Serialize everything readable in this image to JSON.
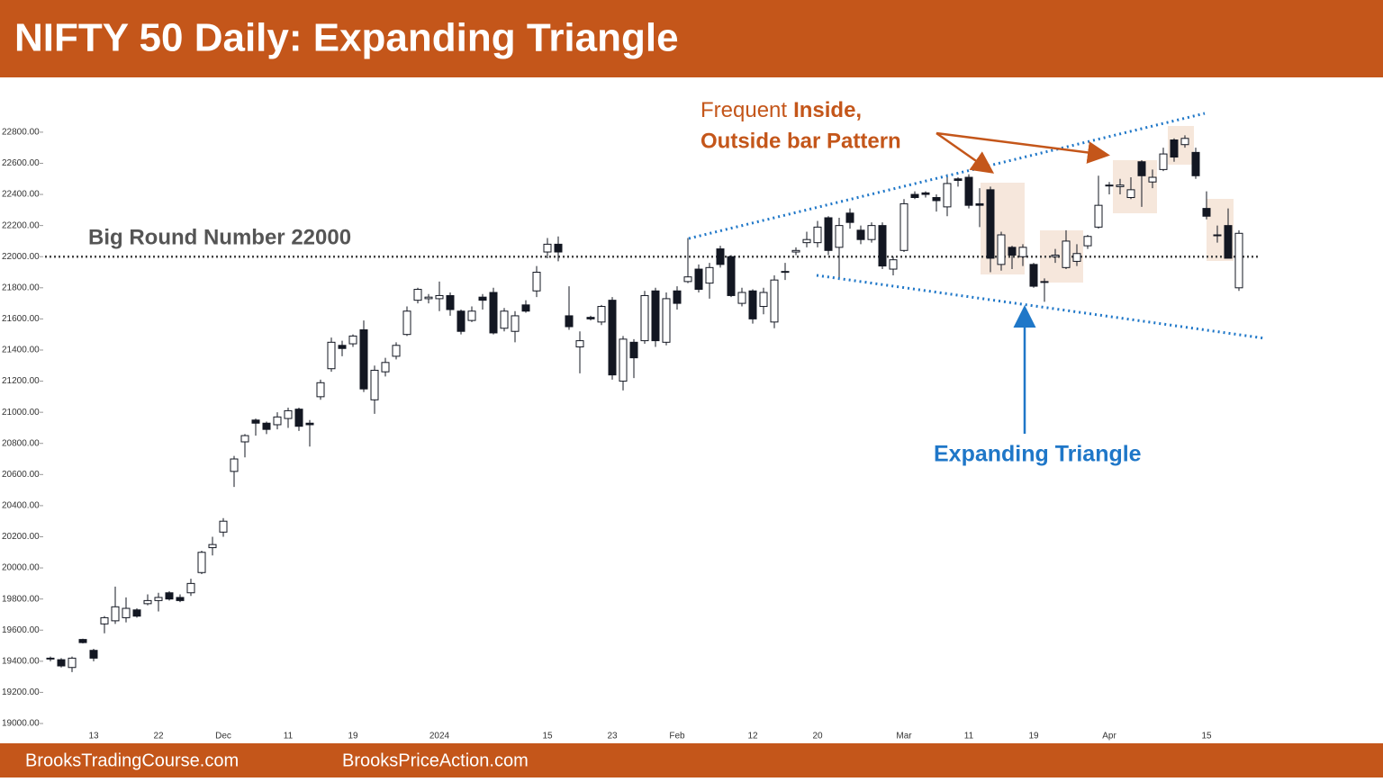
{
  "chart_data": {
    "type": "candlestick",
    "title": "NIFTY 50 Daily: Expanding Triangle",
    "categories": [
      null,
      null,
      null,
      null,
      "13",
      null,
      null,
      null,
      null,
      null,
      "22",
      null,
      null,
      null,
      null,
      null,
      "Dec",
      null,
      null,
      null,
      null,
      null,
      "11",
      null,
      null,
      null,
      null,
      null,
      "19",
      null,
      null,
      null,
      null,
      null,
      null,
      null,
      "2024",
      null,
      null,
      null,
      null,
      null,
      null,
      null,
      null,
      null,
      "15",
      null,
      null,
      null,
      null,
      null,
      "23",
      null,
      null,
      null,
      null,
      null,
      "Feb",
      null,
      null,
      null,
      null,
      null,
      null,
      "12",
      null,
      null,
      null,
      null,
      null,
      "20",
      null,
      null,
      null,
      null,
      null,
      null,
      null,
      "Mar",
      null,
      null,
      null,
      null,
      null,
      "11",
      null,
      null,
      null,
      null,
      null,
      "19",
      null,
      null,
      null,
      null,
      null,
      null,
      "Apr",
      null,
      null,
      null,
      null,
      null,
      null,
      null,
      null,
      "15",
      null,
      null,
      null
    ],
    "open": [
      19420,
      19410,
      19360,
      19540,
      19470,
      19640,
      19660,
      19680,
      19730,
      19770,
      19790,
      19840,
      19810,
      19840,
      19970,
      20130,
      20230,
      20620,
      20810,
      20950,
      20930,
      20920,
      20960,
      21020,
      20930,
      21100,
      21280,
      21430,
      21440,
      21530,
      21080,
      21260,
      21360,
      21500,
      21720,
      21730,
      21730,
      21750,
      21650,
      21590,
      21740,
      21770,
      21540,
      21520,
      21690,
      21780,
      22030,
      22080,
      21620,
      21420,
      21610,
      21580,
      21720,
      21200,
      21450,
      21460,
      21780,
      21450,
      21780,
      21840,
      21920,
      21830,
      22050,
      22000,
      21700,
      21780,
      21680,
      21580,
      21900,
      22030,
      22090,
      22090,
      22250,
      22060,
      22280,
      22170,
      22110,
      22200,
      21920,
      22040,
      22400,
      22410,
      22380,
      22320,
      22500,
      22510,
      22340,
      22430,
      21950,
      22060,
      22000,
      21950,
      21840,
      22000,
      21930,
      21970,
      22070,
      22190,
      22460,
      22450,
      22380,
      22610,
      22480,
      22560,
      22750,
      22720,
      22670,
      22310,
      22140,
      22200,
      21800
    ],
    "high": [
      19430,
      19420,
      19430,
      19545,
      19480,
      19690,
      19880,
      19810,
      19740,
      19830,
      19840,
      19850,
      19830,
      19930,
      20110,
      20200,
      20320,
      20720,
      20860,
      20960,
      20940,
      21000,
      21030,
      21030,
      20950,
      21210,
      21480,
      21460,
      21500,
      21590,
      21300,
      21350,
      21450,
      21680,
      21800,
      21760,
      21840,
      21770,
      21660,
      21680,
      21760,
      21800,
      21670,
      21650,
      21720,
      21940,
      22120,
      22130,
      21810,
      21520,
      21620,
      21690,
      21740,
      21490,
      21470,
      21780,
      21800,
      21770,
      21810,
      22120,
      21950,
      21960,
      22070,
      22010,
      21800,
      21790,
      21800,
      21880,
      21960,
      22060,
      22160,
      22230,
      22260,
      22250,
      22310,
      22200,
      22220,
      22220,
      22000,
      22370,
      22420,
      22420,
      22400,
      22530,
      22510,
      22530,
      22440,
      22450,
      22160,
      22070,
      22080,
      21960,
      21860,
      22050,
      22170,
      22080,
      22140,
      22520,
      22480,
      22500,
      22510,
      22620,
      22560,
      22700,
      22760,
      22780,
      22700,
      22420,
      22200,
      22310,
      22170
    ],
    "low": [
      19400,
      19360,
      19330,
      19515,
      19400,
      19580,
      19640,
      19650,
      19680,
      19760,
      19720,
      19790,
      19780,
      19820,
      19960,
      20080,
      20200,
      20520,
      20710,
      20850,
      20860,
      20890,
      20900,
      20880,
      20780,
      21080,
      21260,
      21360,
      21420,
      21130,
      20990,
      21230,
      21340,
      21490,
      21700,
      21700,
      21650,
      21620,
      21500,
      21580,
      21660,
      21500,
      21520,
      21450,
      21640,
      21740,
      21990,
      21970,
      21530,
      21250,
      21590,
      21560,
      21210,
      21140,
      21220,
      21440,
      21420,
      21430,
      21660,
      21830,
      21770,
      21730,
      21930,
      21740,
      21680,
      21570,
      21630,
      21540,
      21850,
      22010,
      22060,
      22060,
      22010,
      21850,
      22180,
      22080,
      22090,
      21920,
      21880,
      22030,
      22370,
      22380,
      22290,
      22260,
      22450,
      22310,
      22190,
      21900,
      21910,
      21920,
      21940,
      21800,
      21710,
      21960,
      21920,
      21940,
      22050,
      22180,
      22400,
      22400,
      22370,
      22320,
      22440,
      22550,
      22610,
      22700,
      22500,
      22240,
      22090,
      21990,
      21780
    ],
    "close": [
      19415,
      19370,
      19420,
      19520,
      19420,
      19680,
      19750,
      19740,
      19690,
      19790,
      19810,
      19800,
      19790,
      19900,
      20100,
      20150,
      20300,
      20700,
      20850,
      20930,
      20890,
      20970,
      21010,
      20910,
      20920,
      21190,
      21450,
      21410,
      21490,
      21150,
      21270,
      21320,
      21430,
      21650,
      21790,
      21740,
      21750,
      21660,
      21520,
      21650,
      21720,
      21510,
      21650,
      21620,
      21650,
      21900,
      22080,
      22030,
      21550,
      21460,
      21600,
      21680,
      21240,
      21470,
      21350,
      21750,
      21460,
      21730,
      21700,
      21870,
      21790,
      21930,
      21950,
      21750,
      21770,
      21600,
      21770,
      21850,
      21905,
      22040,
      22110,
      22190,
      22040,
      22200,
      22220,
      22110,
      22200,
      21940,
      21980,
      22340,
      22380,
      22400,
      22360,
      22470,
      22490,
      22330,
      22330,
      21990,
      22140,
      22010,
      22060,
      21810,
      21840,
      22010,
      22100,
      22020,
      22130,
      22330,
      22460,
      22460,
      22430,
      22520,
      22510,
      22660,
      22640,
      22760,
      22520,
      22260,
      22140,
      21990,
      22150
    ],
    "up_color": "#ffffff",
    "down_color": "#131722",
    "wick_color": "#131722",
    "ylim": [
      19000,
      23100
    ],
    "yticks": [
      {
        "value": 19000,
        "label": "19000.00"
      },
      {
        "value": 19200,
        "label": "19200.00"
      },
      {
        "value": 19400,
        "label": "19400.00"
      },
      {
        "value": 19600,
        "label": "19600.00"
      },
      {
        "value": 19800,
        "label": "19800.00"
      },
      {
        "value": 20000,
        "label": "20000.00"
      },
      {
        "value": 20200,
        "label": "20200.00"
      },
      {
        "value": 20400,
        "label": "20400.00"
      },
      {
        "value": 20600,
        "label": "20600.00"
      },
      {
        "value": 20800,
        "label": "20800.00"
      },
      {
        "value": 21000,
        "label": "21000.00"
      },
      {
        "value": 21200,
        "label": "21200.00"
      },
      {
        "value": 21400,
        "label": "21400.00"
      },
      {
        "value": 21600,
        "label": "21600.00"
      },
      {
        "value": 21800,
        "label": "21800.00"
      },
      {
        "value": 22000,
        "label": "22000.00"
      },
      {
        "value": 22200,
        "label": "22200.00"
      },
      {
        "value": 22400,
        "label": "22400.00"
      },
      {
        "value": 22600,
        "label": "22600.00"
      },
      {
        "value": 22800,
        "label": "22800.00"
      }
    ],
    "grid": false,
    "annotations": {
      "round_number": {
        "value": 22000,
        "label": "Big Round Number 22000"
      },
      "pattern_note": [
        "Frequent",
        "Inside,",
        "Outside bar Pattern"
      ],
      "triangle_label": "Expanding Triangle"
    }
  },
  "footer": [
    "BrooksTradingCourse.com",
    "BrooksPriceAction.com"
  ]
}
